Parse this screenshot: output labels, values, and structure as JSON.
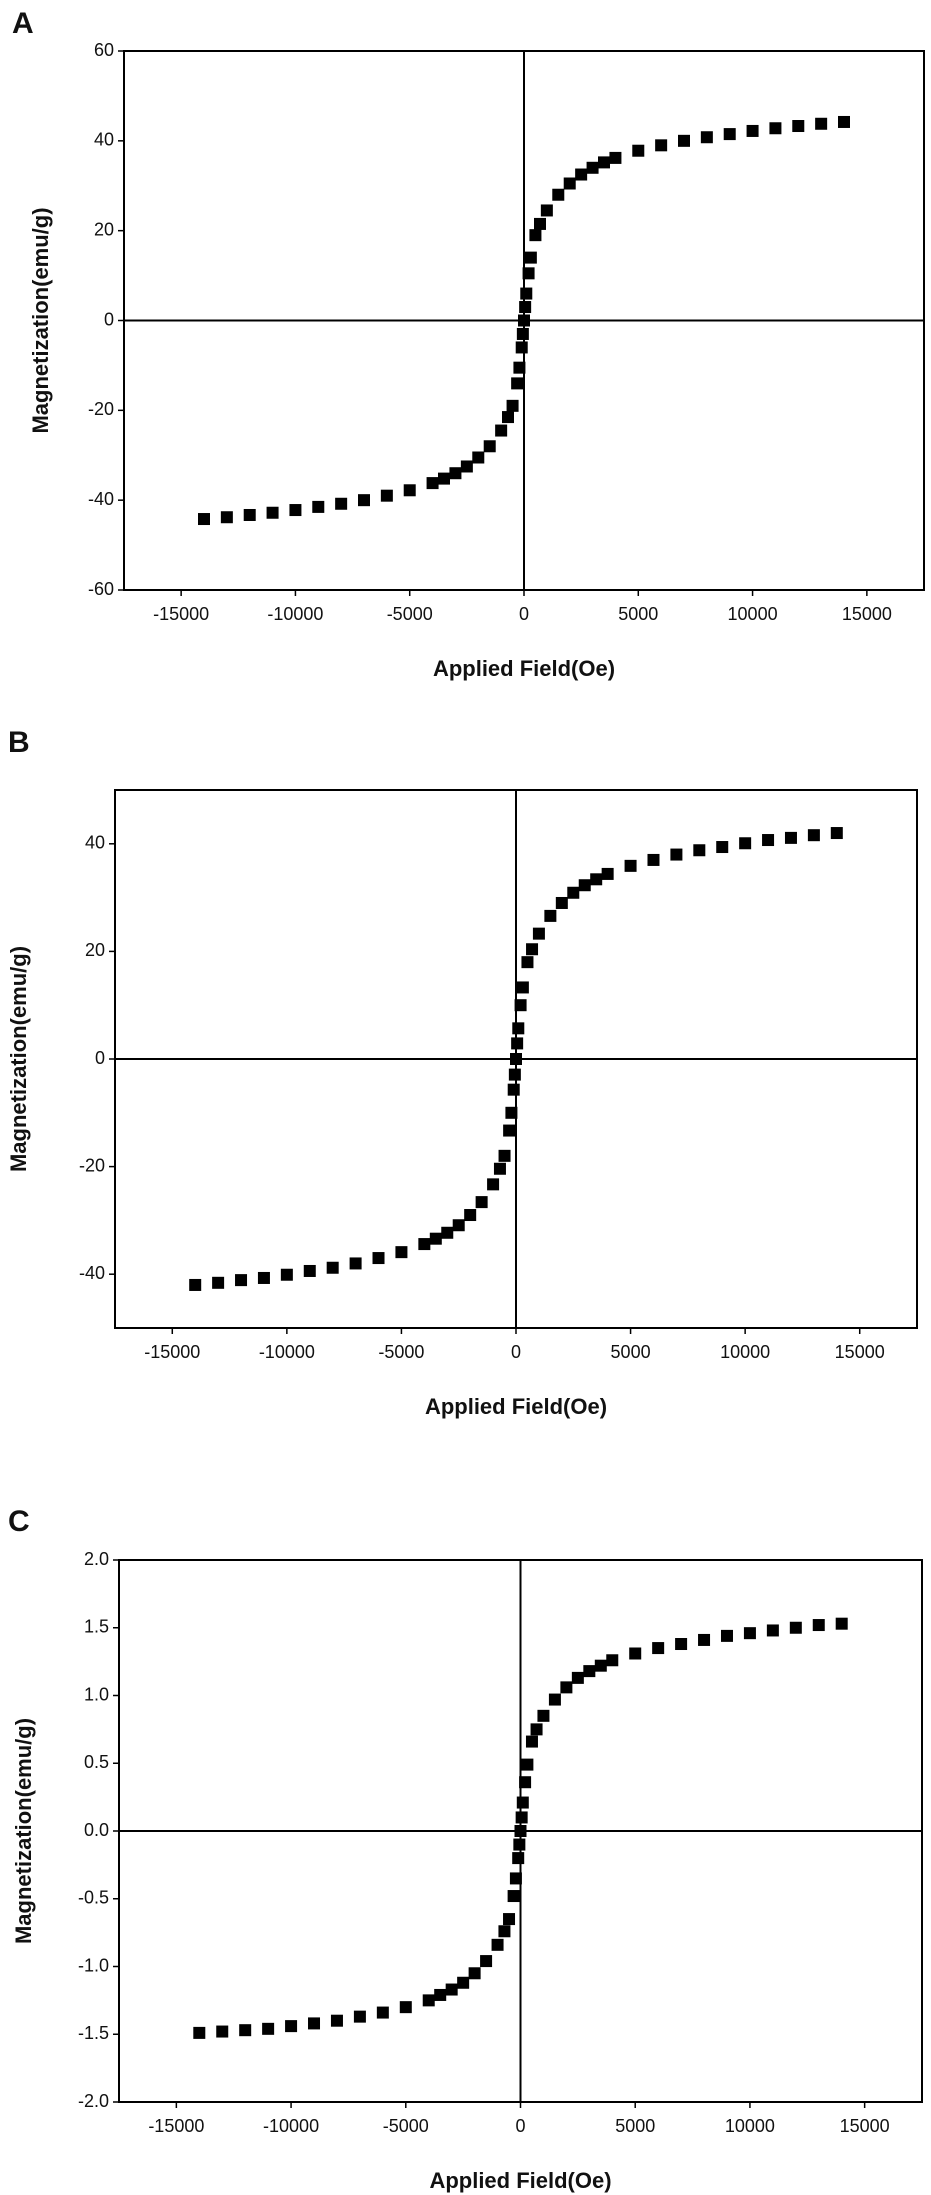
{
  "chart_data": [
    {
      "type": "scatter",
      "panel_label": "A",
      "x_label": "Applied Field(Oe)",
      "y_label": "Magnetization(emu/g)",
      "color": "#000000",
      "zero_lines": true,
      "x": [
        -14000,
        -13000,
        -12000,
        -11000,
        -10000,
        -9000,
        -8000,
        -7000,
        -6000,
        -5000,
        -4000,
        -3500,
        -3000,
        -2500,
        -2000,
        -1500,
        -1000,
        -700,
        -500,
        -300,
        -200,
        -100,
        -50,
        0,
        50,
        100,
        200,
        300,
        500,
        700,
        1000,
        1500,
        2000,
        2500,
        3000,
        3500,
        4000,
        5000,
        6000,
        7000,
        8000,
        9000,
        10000,
        11000,
        12000,
        13000,
        14000
      ],
      "values": [
        -44.2,
        -43.8,
        -43.3,
        -42.8,
        -42.2,
        -41.5,
        -40.8,
        -40,
        -39,
        -37.8,
        -36.2,
        -35.2,
        -34,
        -32.5,
        -30.5,
        -28,
        -24.5,
        -21.5,
        -19,
        -14,
        -10.5,
        -6,
        -3,
        0,
        3,
        6,
        10.5,
        14,
        19,
        21.5,
        24.5,
        28,
        30.5,
        32.5,
        34,
        35.2,
        36.2,
        37.8,
        39,
        40,
        40.8,
        41.5,
        42.2,
        42.8,
        43.3,
        43.8,
        44.2
      ],
      "xlim": [
        -17500,
        17500
      ],
      "xticks": [
        -15000,
        -10000,
        -5000,
        0,
        5000,
        10000,
        15000
      ],
      "ylim": [
        -60,
        60
      ],
      "yticks": [
        -60,
        -40,
        -20,
        0,
        20,
        40,
        60
      ]
    },
    {
      "type": "scatter",
      "panel_label": "B",
      "x_label": "Applied Field(Oe)",
      "y_label": "Magnetization(emu/g)",
      "color": "#000000",
      "zero_lines": true,
      "x": [
        -14000,
        -13000,
        -12000,
        -11000,
        -10000,
        -9000,
        -8000,
        -7000,
        -6000,
        -5000,
        -4000,
        -3500,
        -3000,
        -2500,
        -2000,
        -1500,
        -1000,
        -700,
        -500,
        -300,
        -200,
        -100,
        -50,
        0,
        50,
        100,
        200,
        300,
        500,
        700,
        1000,
        1500,
        2000,
        2500,
        3000,
        3500,
        4000,
        5000,
        6000,
        7000,
        8000,
        9000,
        10000,
        11000,
        12000,
        13000,
        14000
      ],
      "values": [
        -42,
        -41.6,
        -41.1,
        -40.7,
        -40.1,
        -39.4,
        -38.8,
        -38,
        -37,
        -35.9,
        -34.4,
        -33.4,
        -32.3,
        -30.9,
        -29,
        -26.6,
        -23.3,
        -20.4,
        -18,
        -13.3,
        -10,
        -5.7,
        -2.9,
        0,
        2.9,
        5.7,
        10,
        13.3,
        18,
        20.4,
        23.3,
        26.6,
        29,
        30.9,
        32.3,
        33.4,
        34.4,
        35.9,
        37,
        38,
        38.8,
        39.4,
        40.1,
        40.7,
        41.1,
        41.6,
        42
      ],
      "xlim": [
        -17500,
        17500
      ],
      "xticks": [
        -15000,
        -10000,
        -5000,
        0,
        5000,
        10000,
        15000
      ],
      "ylim": [
        -50,
        50
      ],
      "yticks": [
        -40,
        -20,
        0,
        20,
        40
      ]
    },
    {
      "type": "scatter",
      "panel_label": "C",
      "x_label": "Applied Field(Oe)",
      "y_label": "Magnetization(emu/g)",
      "color": "#000000",
      "zero_lines": true,
      "x": [
        -14000,
        -13000,
        -12000,
        -11000,
        -10000,
        -9000,
        -8000,
        -7000,
        -6000,
        -5000,
        -4000,
        -3500,
        -3000,
        -2500,
        -2000,
        -1500,
        -1000,
        -700,
        -500,
        -300,
        -200,
        -100,
        -50,
        0,
        50,
        100,
        200,
        300,
        500,
        700,
        1000,
        1500,
        2000,
        2500,
        3000,
        3500,
        4000,
        5000,
        6000,
        7000,
        8000,
        9000,
        10000,
        11000,
        12000,
        13000,
        14000
      ],
      "values": [
        -1.49,
        -1.48,
        -1.47,
        -1.46,
        -1.44,
        -1.42,
        -1.4,
        -1.37,
        -1.34,
        -1.3,
        -1.25,
        -1.21,
        -1.17,
        -1.12,
        -1.05,
        -0.96,
        -0.84,
        -0.74,
        -0.65,
        -0.48,
        -0.35,
        -0.2,
        -0.1,
        0,
        0.1,
        0.21,
        0.36,
        0.49,
        0.66,
        0.75,
        0.85,
        0.97,
        1.06,
        1.13,
        1.18,
        1.22,
        1.26,
        1.31,
        1.35,
        1.38,
        1.41,
        1.44,
        1.46,
        1.48,
        1.5,
        1.52,
        1.53
      ],
      "xlim": [
        -17500,
        17500
      ],
      "xticks": [
        -15000,
        -10000,
        -5000,
        0,
        5000,
        10000,
        15000
      ],
      "ylim": [
        -2,
        2
      ],
      "yticks": [
        {
          "value": -2,
          "label": "-2.0"
        },
        -1.5,
        {
          "value": -1,
          "label": "-1.0"
        },
        -0.5,
        {
          "value": 0,
          "label": "0.0"
        },
        0.5,
        {
          "value": 1,
          "label": "1.0"
        },
        1.5,
        {
          "value": 2,
          "label": "2.0"
        }
      ]
    }
  ]
}
